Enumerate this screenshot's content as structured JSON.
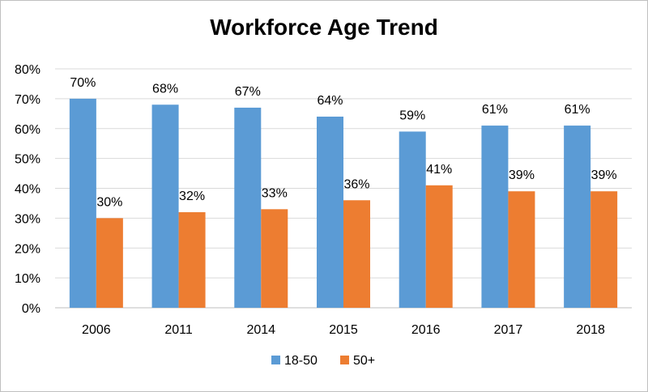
{
  "chart_data": {
    "type": "bar",
    "title": "Workforce Age Trend",
    "xlabel": "",
    "ylabel": "",
    "categories": [
      "2006",
      "2011",
      "2014",
      "2015",
      "2016",
      "2017",
      "2018"
    ],
    "series": [
      {
        "name": "18-50",
        "color": "#5b9bd5",
        "values": [
          70,
          68,
          67,
          64,
          59,
          61,
          61
        ],
        "labels": [
          "70%",
          "68%",
          "67%",
          "64%",
          "59%",
          "61%",
          "61%"
        ]
      },
      {
        "name": "50+",
        "color": "#ed7d31",
        "values": [
          30,
          32,
          33,
          36,
          41,
          39,
          39
        ],
        "labels": [
          "30%",
          "32%",
          "33%",
          "36%",
          "41%",
          "39%",
          "39%"
        ]
      }
    ],
    "ylim": [
      0,
      80
    ],
    "yticks": [
      "0%",
      "10%",
      "20%",
      "30%",
      "40%",
      "50%",
      "60%",
      "70%",
      "80%"
    ],
    "grid": true,
    "legend_position": "bottom"
  }
}
